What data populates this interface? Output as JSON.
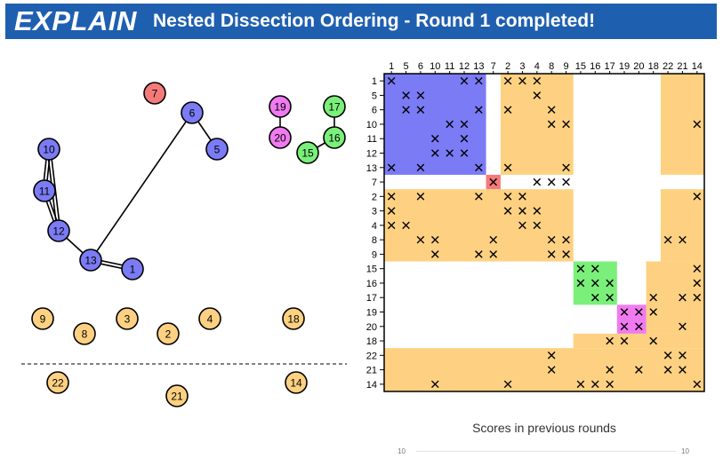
{
  "header": {
    "logo": "EXPLAIN",
    "title": "Nested Dissection Ordering - Round 1 completed!",
    "color": "#1f5fb0"
  },
  "colors": {
    "blue": "#7b7bf5",
    "red": "#f47a7a",
    "magenta": "#f07af0",
    "green": "#7af07a",
    "orange": "#fdd181"
  },
  "graph": {
    "nodes": [
      {
        "id": "7",
        "group": "red"
      },
      {
        "id": "6",
        "group": "blue"
      },
      {
        "id": "5",
        "group": "blue"
      },
      {
        "id": "10",
        "group": "blue"
      },
      {
        "id": "11",
        "group": "blue"
      },
      {
        "id": "12",
        "group": "blue"
      },
      {
        "id": "13",
        "group": "blue"
      },
      {
        "id": "1",
        "group": "blue"
      },
      {
        "id": "19",
        "group": "magenta"
      },
      {
        "id": "20",
        "group": "magenta"
      },
      {
        "id": "17",
        "group": "green"
      },
      {
        "id": "16",
        "group": "green"
      },
      {
        "id": "15",
        "group": "green"
      },
      {
        "id": "9",
        "group": "orange"
      },
      {
        "id": "8",
        "group": "orange"
      },
      {
        "id": "3",
        "group": "orange"
      },
      {
        "id": "2",
        "group": "orange"
      },
      {
        "id": "4",
        "group": "orange"
      },
      {
        "id": "18",
        "group": "orange"
      },
      {
        "id": "22",
        "group": "orange"
      },
      {
        "id": "21",
        "group": "orange"
      },
      {
        "id": "14",
        "group": "orange"
      }
    ],
    "edges": [
      [
        "6",
        "5"
      ],
      [
        "6",
        "13"
      ],
      [
        "10",
        "11"
      ],
      [
        "10",
        "12"
      ],
      [
        "11",
        "12"
      ],
      [
        "12",
        "13"
      ],
      [
        "13",
        "1"
      ],
      [
        "19",
        "20"
      ],
      [
        "17",
        "16"
      ],
      [
        "16",
        "15"
      ]
    ]
  },
  "matrix": {
    "order": [
      "1",
      "5",
      "6",
      "10",
      "11",
      "12",
      "13",
      "7",
      "2",
      "3",
      "4",
      "8",
      "9",
      "15",
      "16",
      "17",
      "19",
      "20",
      "18",
      "22",
      "21",
      "14"
    ],
    "blocks": [
      {
        "rows": [
          0,
          6
        ],
        "cols": [
          0,
          6
        ],
        "color": "blue"
      },
      {
        "rows": [
          7,
          7
        ],
        "cols": [
          7,
          7
        ],
        "color": "red"
      },
      {
        "rows": [
          13,
          15
        ],
        "cols": [
          13,
          15
        ],
        "color": "green"
      },
      {
        "rows": [
          16,
          17
        ],
        "cols": [
          16,
          17
        ],
        "color": "magenta"
      },
      {
        "rows": [
          0,
          6
        ],
        "cols": [
          8,
          12
        ],
        "color": "orange"
      },
      {
        "rows": [
          0,
          6
        ],
        "cols": [
          19,
          21
        ],
        "color": "orange"
      },
      {
        "rows": [
          8,
          12
        ],
        "cols": [
          0,
          12
        ],
        "color": "orange"
      },
      {
        "rows": [
          8,
          12
        ],
        "cols": [
          19,
          21
        ],
        "color": "orange"
      },
      {
        "rows": [
          13,
          17
        ],
        "cols": [
          18,
          21
        ],
        "color": "orange"
      },
      {
        "rows": [
          18,
          18
        ],
        "cols": [
          13,
          21
        ],
        "color": "orange"
      },
      {
        "rows": [
          19,
          21
        ],
        "cols": [
          0,
          21
        ],
        "color": "orange"
      }
    ],
    "entries": [
      [
        0,
        0
      ],
      [
        0,
        5
      ],
      [
        0,
        6
      ],
      [
        0,
        8
      ],
      [
        0,
        9
      ],
      [
        0,
        10
      ],
      [
        1,
        1
      ],
      [
        1,
        2
      ],
      [
        1,
        10
      ],
      [
        2,
        1
      ],
      [
        2,
        2
      ],
      [
        2,
        6
      ],
      [
        2,
        8
      ],
      [
        2,
        11
      ],
      [
        3,
        4
      ],
      [
        3,
        5
      ],
      [
        3,
        11
      ],
      [
        3,
        12
      ],
      [
        3,
        21
      ],
      [
        4,
        3
      ],
      [
        4,
        5
      ],
      [
        5,
        3
      ],
      [
        5,
        4
      ],
      [
        5,
        5
      ],
      [
        6,
        0
      ],
      [
        6,
        2
      ],
      [
        6,
        6
      ],
      [
        6,
        8
      ],
      [
        6,
        12
      ],
      [
        7,
        7
      ],
      [
        7,
        10
      ],
      [
        7,
        11
      ],
      [
        7,
        12
      ],
      [
        8,
        0
      ],
      [
        8,
        2
      ],
      [
        8,
        6
      ],
      [
        8,
        8
      ],
      [
        8,
        9
      ],
      [
        8,
        21
      ],
      [
        9,
        0
      ],
      [
        9,
        8
      ],
      [
        9,
        9
      ],
      [
        9,
        10
      ],
      [
        10,
        0
      ],
      [
        10,
        1
      ],
      [
        10,
        9
      ],
      [
        10,
        10
      ],
      [
        11,
        2
      ],
      [
        11,
        3
      ],
      [
        11,
        7
      ],
      [
        11,
        11
      ],
      [
        11,
        12
      ],
      [
        11,
        19
      ],
      [
        11,
        20
      ],
      [
        12,
        3
      ],
      [
        12,
        6
      ],
      [
        12,
        7
      ],
      [
        12,
        11
      ],
      [
        12,
        12
      ],
      [
        13,
        13
      ],
      [
        13,
        14
      ],
      [
        13,
        21
      ],
      [
        14,
        13
      ],
      [
        14,
        14
      ],
      [
        14,
        15
      ],
      [
        14,
        21
      ],
      [
        15,
        14
      ],
      [
        15,
        15
      ],
      [
        15,
        18
      ],
      [
        15,
        20
      ],
      [
        15,
        21
      ],
      [
        16,
        16
      ],
      [
        16,
        17
      ],
      [
        16,
        18
      ],
      [
        17,
        16
      ],
      [
        17,
        17
      ],
      [
        17,
        20
      ],
      [
        18,
        15
      ],
      [
        18,
        16
      ],
      [
        18,
        18
      ],
      [
        19,
        11
      ],
      [
        19,
        19
      ],
      [
        19,
        20
      ],
      [
        20,
        11
      ],
      [
        20,
        15
      ],
      [
        20,
        17
      ],
      [
        20,
        19
      ],
      [
        20,
        20
      ],
      [
        21,
        3
      ],
      [
        21,
        8
      ],
      [
        21,
        13
      ],
      [
        21,
        14
      ],
      [
        21,
        15
      ],
      [
        21,
        21
      ]
    ]
  },
  "scores": {
    "title": "Scores in previous rounds",
    "left_value": "10",
    "right_value": "10"
  }
}
